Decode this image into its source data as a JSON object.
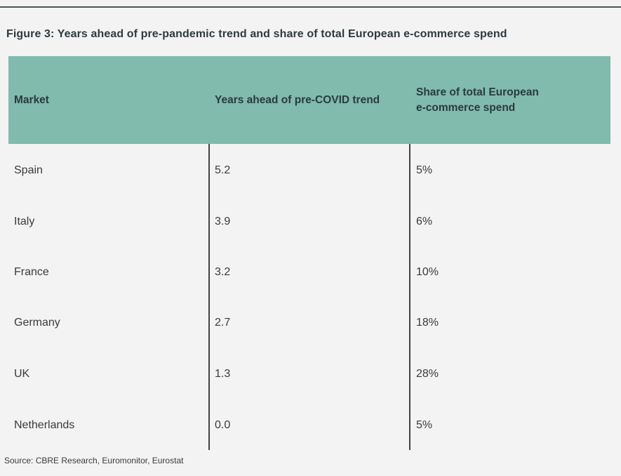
{
  "figure": {
    "title": "Figure 3:  Years ahead of pre-pandemic trend and share of total European e-commerce spend"
  },
  "table": {
    "headers": {
      "market": "Market",
      "years_ahead": "Years ahead of pre-COVID trend",
      "share_line1": "Share of total European",
      "share_line2": "e-commerce spend"
    },
    "rows": [
      {
        "market": "Spain",
        "years_ahead": "5.2",
        "share": "5%"
      },
      {
        "market": "Italy",
        "years_ahead": "3.9",
        "share": "6%"
      },
      {
        "market": "France",
        "years_ahead": "3.2",
        "share": "10%"
      },
      {
        "market": "Germany",
        "years_ahead": "2.7",
        "share": "18%"
      },
      {
        "market": "UK",
        "years_ahead": "1.3",
        "share": "28%"
      },
      {
        "market": "Netherlands",
        "years_ahead": "0.0",
        "share": "5%"
      }
    ]
  },
  "source": "Source: CBRE Research, Euromonitor, Eurostat",
  "colors": {
    "header_bg": "#80bbad",
    "page_bg": "#f3f3f3",
    "rule": "#4a555b"
  }
}
